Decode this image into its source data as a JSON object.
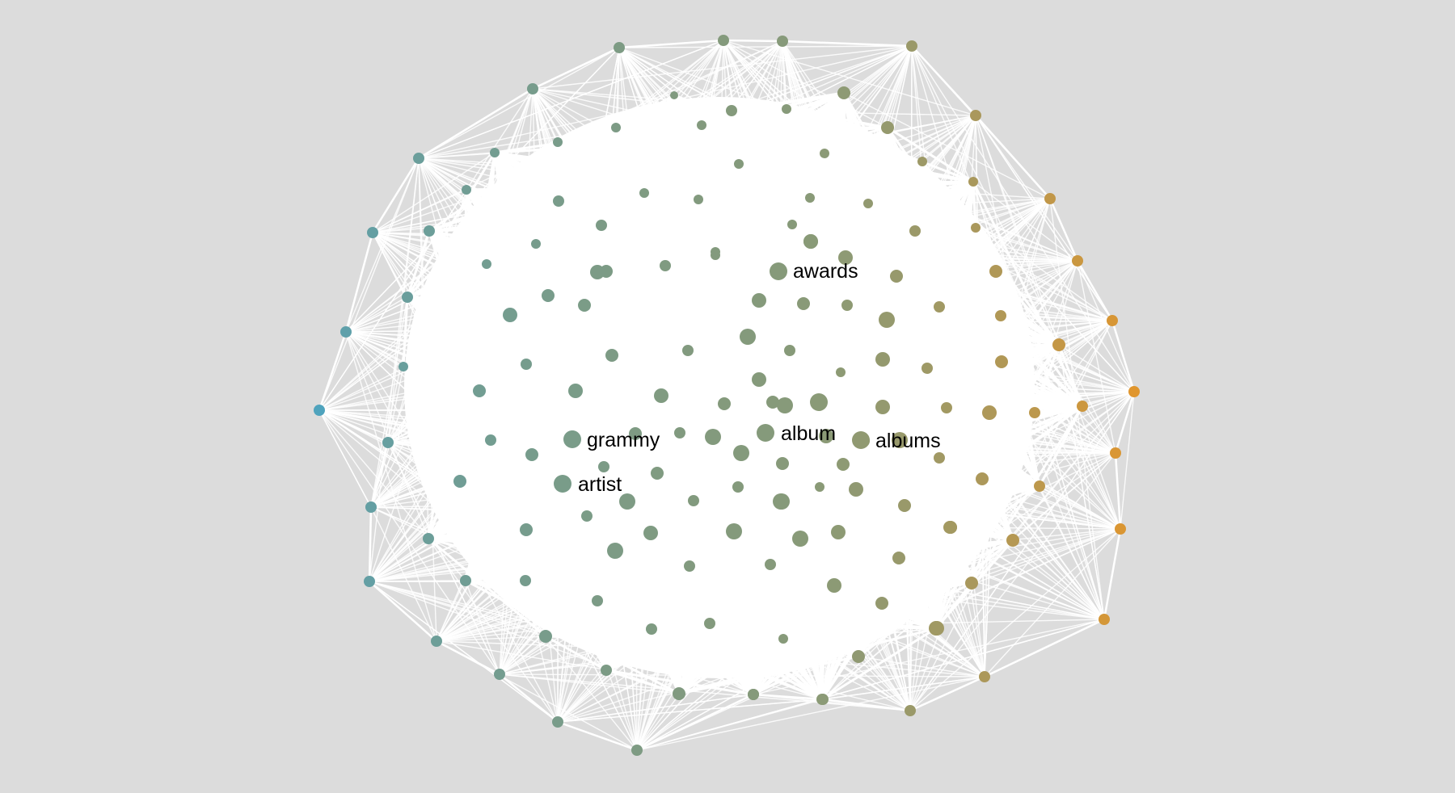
{
  "graph": {
    "labels": {
      "awards": "awards",
      "grammy": "grammy",
      "album": "album",
      "albums": "albums",
      "artist": "artist"
    },
    "colors": {
      "background": "#dcdcdc",
      "edge": "#ffffff",
      "node_cool": "#4fa3bd",
      "node_mid": "#849a7c",
      "node_warm": "#e0962e",
      "label": "#000000"
    }
  }
}
